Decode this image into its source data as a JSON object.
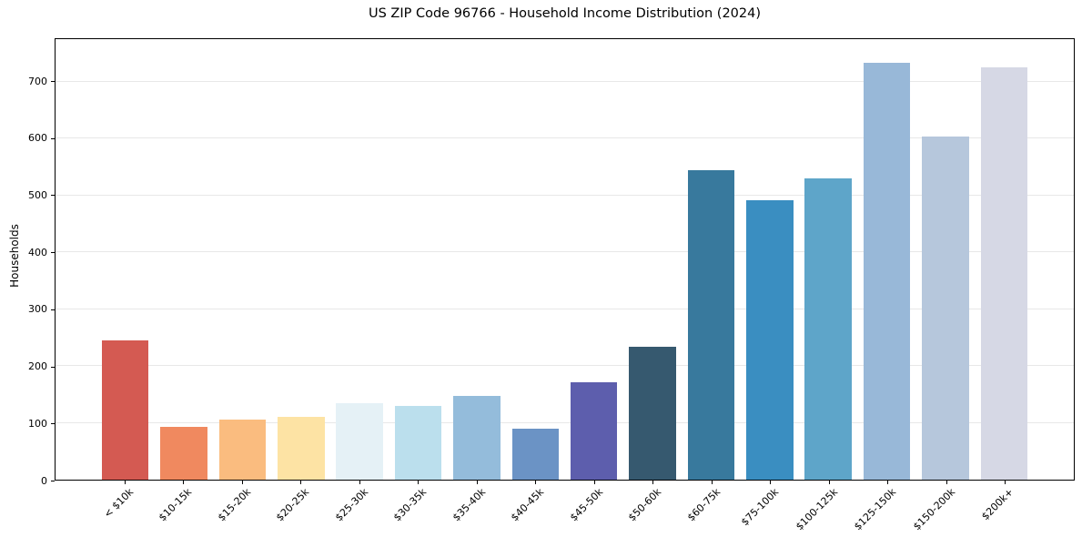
{
  "figure": {
    "background": "#ffffff",
    "spine_color": "#000000",
    "text_color": "#000000"
  },
  "chart_data": {
    "type": "bar",
    "title": "US ZIP Code 96766 - Household Income Distribution (2024)",
    "xlabel": "",
    "ylabel": "Households",
    "categories": [
      "< $10k",
      "$10-15k",
      "$15-20k",
      "$20-25k",
      "$25-30k",
      "$30-35k",
      "$35-40k",
      "$40-45k",
      "$45-50k",
      "$50-60k",
      "$60-75k",
      "$75-100k",
      "$100-125k",
      "$125-150k",
      "$150-200k",
      "$200k+"
    ],
    "values": [
      245,
      93,
      106,
      110,
      134,
      129,
      148,
      90,
      172,
      234,
      544,
      491,
      530,
      733,
      604,
      726
    ],
    "bar_colors": [
      "#d45a52",
      "#f0895f",
      "#fabc7f",
      "#fde3a4",
      "#e5f1f6",
      "#bbdfed",
      "#94bcdb",
      "#6b93c5",
      "#5d5ead",
      "#36596f",
      "#38799d",
      "#3a8ec1",
      "#5ea5c9",
      "#98b8d8",
      "#b6c7dc",
      "#d6d8e5"
    ],
    "yticks": [
      0,
      100,
      200,
      300,
      400,
      500,
      600,
      700
    ],
    "ylim": [
      0,
      775
    ],
    "xlim": [
      -1.19,
      16.19
    ],
    "bar_width": 0.8,
    "grid": "horizontal",
    "gridline_color": "#e8e8e8",
    "legend": "none"
  }
}
